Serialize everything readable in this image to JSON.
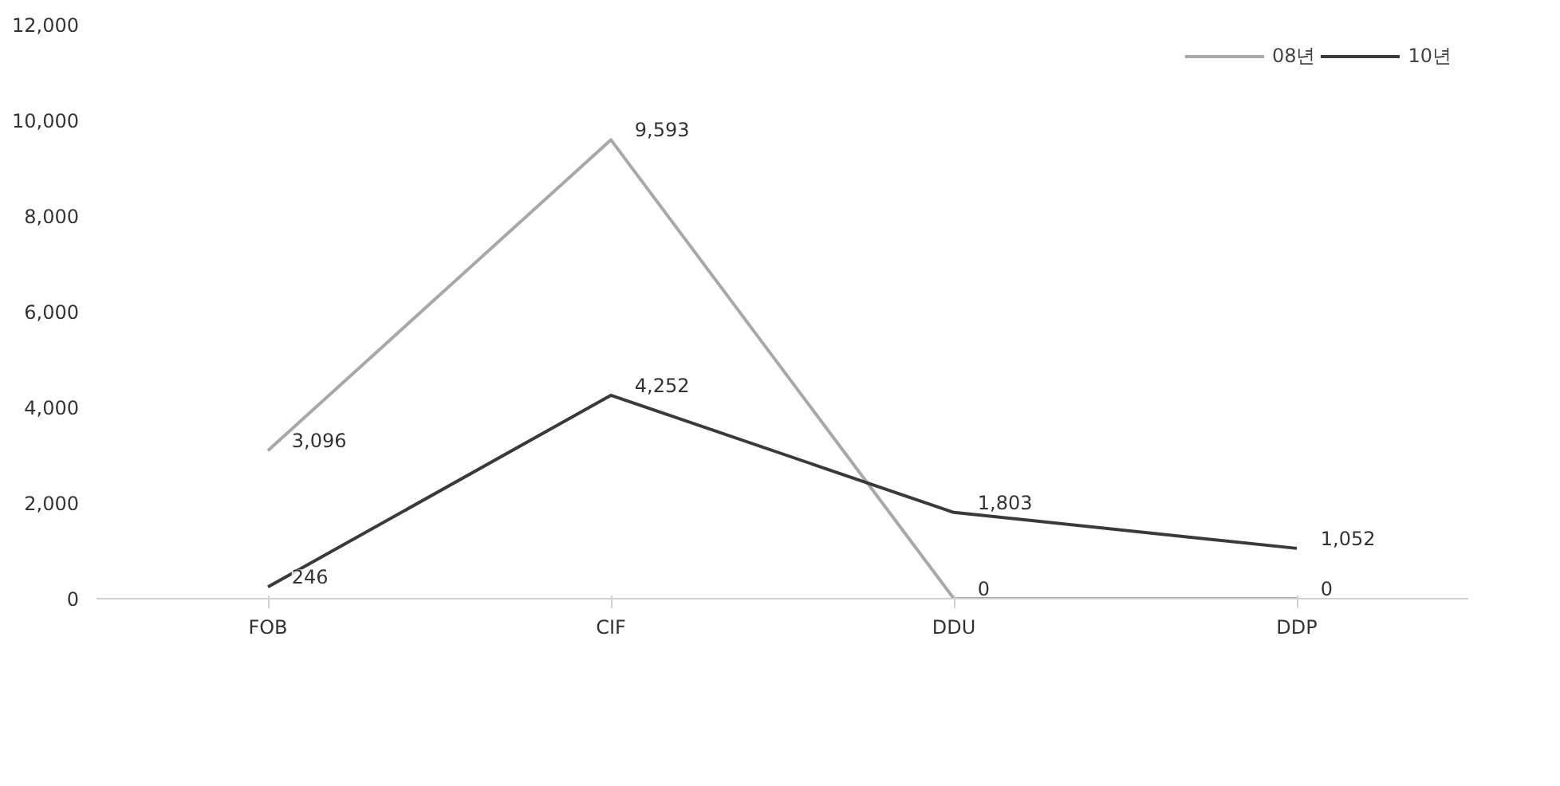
{
  "chart_data": {
    "type": "line",
    "categories": [
      "FOB",
      "CIF",
      "DDU",
      "DDP"
    ],
    "series": [
      {
        "name": "08년",
        "color": "#a8a8a8",
        "values": [
          3096,
          9593,
          0,
          0
        ],
        "value_labels": [
          "3,096",
          "9,593",
          "0",
          "0"
        ]
      },
      {
        "name": "10년",
        "color": "#3a3a3a",
        "values": [
          246,
          4252,
          1803,
          1052
        ],
        "value_labels": [
          "246",
          "4,252",
          "1,803",
          "1,052"
        ]
      }
    ],
    "ylim": [
      0,
      12000
    ],
    "yticks": [
      {
        "value": 0,
        "label": "0"
      },
      {
        "value": 2000,
        "label": "2,000"
      },
      {
        "value": 4000,
        "label": "4,000"
      },
      {
        "value": 6000,
        "label": "6,000"
      },
      {
        "value": 8000,
        "label": "8,000"
      },
      {
        "value": 10000,
        "label": "10,000"
      },
      {
        "value": 12000,
        "label": "12,000"
      }
    ],
    "grid": false,
    "legend": "top right",
    "marker": "none",
    "line_style": "solid"
  }
}
